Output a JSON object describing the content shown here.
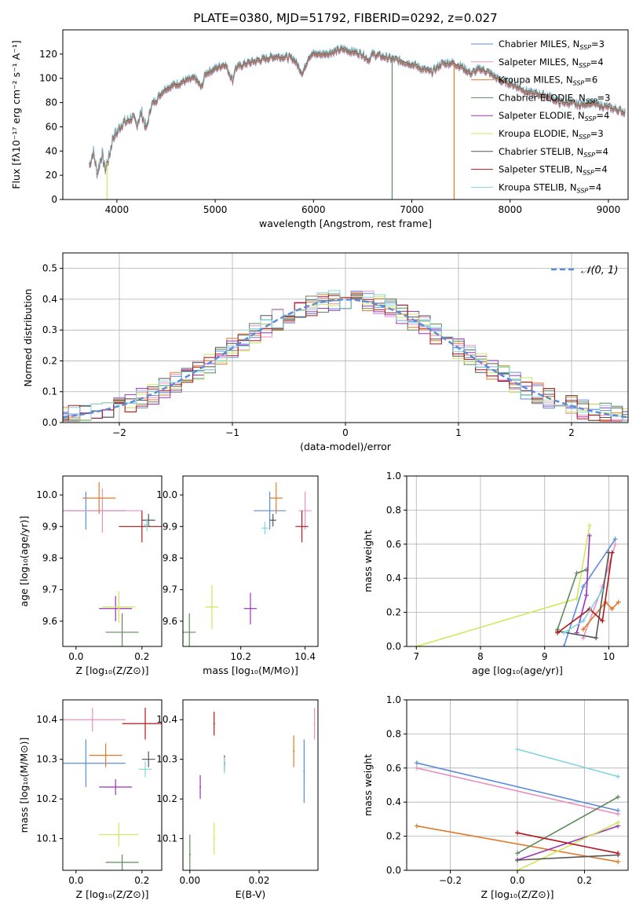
{
  "page": {
    "title": "PLATE=0380, MJD=51792, FIBERID=0292, z=0.027"
  },
  "chart_data": [
    {
      "id": "spectrum",
      "type": "line",
      "xlabel": "wavelength [Angstrom, rest frame]",
      "ylabel": "Flux [fλ10⁻¹⁷ erg cm⁻² s⁻¹ A⁻¹]",
      "xlim": [
        3450,
        9200
      ],
      "ylim": [
        0,
        140
      ],
      "xticks": [
        4000,
        5000,
        6000,
        7000,
        8000,
        9000
      ],
      "yticks": [
        0,
        20,
        40,
        60,
        80,
        100,
        120
      ],
      "grid": false,
      "legend_position": "right",
      "shape_points": [
        [
          3720,
          28
        ],
        [
          3760,
          40
        ],
        [
          3800,
          22
        ],
        [
          3850,
          38
        ],
        [
          3880,
          25
        ],
        [
          3920,
          35
        ],
        [
          3960,
          52
        ],
        [
          4000,
          55
        ],
        [
          4050,
          63
        ],
        [
          4100,
          64
        ],
        [
          4150,
          68
        ],
        [
          4200,
          62
        ],
        [
          4250,
          72
        ],
        [
          4300,
          58
        ],
        [
          4350,
          78
        ],
        [
          4400,
          82
        ],
        [
          4450,
          88
        ],
        [
          4500,
          92
        ],
        [
          4600,
          95
        ],
        [
          4700,
          98
        ],
        [
          4800,
          100
        ],
        [
          4860,
          92
        ],
        [
          4900,
          104
        ],
        [
          5000,
          108
        ],
        [
          5100,
          112
        ],
        [
          5180,
          98
        ],
        [
          5200,
          108
        ],
        [
          5300,
          112
        ],
        [
          5400,
          114
        ],
        [
          5500,
          116
        ],
        [
          5600,
          118
        ],
        [
          5700,
          118
        ],
        [
          5800,
          116
        ],
        [
          5890,
          104
        ],
        [
          5950,
          118
        ],
        [
          6000,
          120
        ],
        [
          6100,
          120
        ],
        [
          6200,
          122
        ],
        [
          6300,
          124
        ],
        [
          6400,
          122
        ],
        [
          6500,
          120
        ],
        [
          6560,
          115
        ],
        [
          6600,
          120
        ],
        [
          6700,
          118
        ],
        [
          6800,
          116
        ],
        [
          6900,
          114
        ],
        [
          7000,
          112
        ],
        [
          7100,
          108
        ],
        [
          7200,
          105
        ],
        [
          7300,
          112
        ],
        [
          7400,
          113
        ],
        [
          7500,
          110
        ],
        [
          7600,
          104
        ],
        [
          7700,
          108
        ],
        [
          7800,
          104
        ],
        [
          7900,
          98
        ],
        [
          8000,
          96
        ],
        [
          8100,
          92
        ],
        [
          8200,
          88
        ],
        [
          8300,
          87
        ],
        [
          8400,
          85
        ],
        [
          8500,
          80
        ],
        [
          8600,
          80
        ],
        [
          8700,
          78
        ],
        [
          8800,
          80
        ],
        [
          8900,
          78
        ],
        [
          9000,
          76
        ],
        [
          9100,
          74
        ],
        [
          9170,
          72
        ]
      ],
      "drops": [
        {
          "series": "Kroupa ELODIE, N_SSP=3",
          "x": 3900
        },
        {
          "series": "Chabrier ELODIE, N_SSP=3",
          "x": 6800
        },
        {
          "series": "Kroupa MILES, N_SSP=6",
          "x": 7430
        }
      ],
      "series": [
        {
          "name": "Chabrier MILES, N",
          "sub": "SSP",
          "tail": "=3",
          "color": "#5b8bdb"
        },
        {
          "name": "Salpeter MILES, N",
          "sub": "SSP",
          "tail": "=4",
          "color": "#e890c0"
        },
        {
          "name": "Kroupa MILES, N",
          "sub": "SSP",
          "tail": "=6",
          "color": "#e07a28"
        },
        {
          "name": "Chabrier ELODIE, N",
          "sub": "SSP",
          "tail": "=3",
          "color": "#5e8a5e"
        },
        {
          "name": "Salpeter ELODIE, N",
          "sub": "SSP",
          "tail": "=4",
          "color": "#9b34b8"
        },
        {
          "name": "Kroupa ELODIE, N",
          "sub": "SSP",
          "tail": "=3",
          "color": "#cfe85a"
        },
        {
          "name": "Chabrier STELIB, N",
          "sub": "SSP",
          "tail": "=4",
          "color": "#555555"
        },
        {
          "name": "Salpeter STELIB, N",
          "sub": "SSP",
          "tail": "=4",
          "color": "#b5161c"
        },
        {
          "name": "Kroupa STELIB, N",
          "sub": "SSP",
          "tail": "=4",
          "color": "#7fd4de"
        }
      ]
    },
    {
      "id": "residuals",
      "type": "line",
      "xlabel": "(data-model)/error",
      "ylabel": "Normed distribution",
      "xlim": [
        -2.5,
        2.5
      ],
      "ylim": [
        0,
        0.55
      ],
      "xticks": [
        -2,
        -1,
        0,
        1,
        2
      ],
      "yticks": [
        0.0,
        0.1,
        0.2,
        0.3,
        0.4,
        0.5
      ],
      "grid": true,
      "legend_position": "upper right",
      "legend": "𝒩(0, 1)",
      "reference_curve": {
        "mu": 0,
        "sigma": 1,
        "color": "#5b8bdb"
      }
    },
    {
      "id": "age-vs-Z",
      "type": "scatter",
      "xlabel": "Z [log₁₀(Z/Z⊙)]",
      "ylabel": "age  [log₁₀(age/yr)]",
      "xlim": [
        -0.04,
        0.26
      ],
      "ylim": [
        9.52,
        10.06
      ],
      "xticks": [
        0.0,
        0.2
      ],
      "yticks": [
        9.6,
        9.7,
        9.8,
        9.9,
        10.0
      ],
      "grid": false,
      "points": [
        {
          "color": "#5b8bdb",
          "x": 0.03,
          "y": 9.95,
          "xerr": 0.12,
          "yerr": 0.06
        },
        {
          "color": "#e890c0",
          "x": 0.08,
          "y": 9.95,
          "xerr": 0.12,
          "yerr": 0.07
        },
        {
          "color": "#e07a28",
          "x": 0.07,
          "y": 9.99,
          "xerr": 0.05,
          "yerr": 0.05
        },
        {
          "color": "#5e8a5e",
          "x": 0.14,
          "y": 9.565,
          "xerr": 0.05,
          "yerr": 0.06
        },
        {
          "color": "#9b34b8",
          "x": 0.12,
          "y": 9.64,
          "xerr": 0.05,
          "yerr": 0.04
        },
        {
          "color": "#cfe85a",
          "x": 0.13,
          "y": 9.645,
          "xerr": 0.05,
          "yerr": 0.05
        },
        {
          "color": "#555555",
          "x": 0.22,
          "y": 9.92,
          "xerr": 0.02,
          "yerr": 0.02
        },
        {
          "color": "#b5161c",
          "x": 0.2,
          "y": 9.9,
          "xerr": 0.07,
          "yerr": 0.05
        },
        {
          "color": "#7fd4de",
          "x": 0.215,
          "y": 9.905,
          "xerr": 0.01,
          "yerr": 0.02
        }
      ]
    },
    {
      "id": "age-vs-mass",
      "type": "scatter",
      "xlabel": "mass [log₁₀(M/M⊙)]",
      "ylabel": "",
      "xlim": [
        10.02,
        10.44
      ],
      "ylim": [
        9.52,
        10.06
      ],
      "xticks": [
        10.2,
        10.4
      ],
      "yticks": [
        9.6,
        9.7,
        9.8,
        9.9,
        10.0
      ],
      "grid": false,
      "points": [
        {
          "color": "#5b8bdb",
          "x": 10.29,
          "y": 9.95,
          "xerr": 0.05,
          "yerr": 0.06
        },
        {
          "color": "#e890c0",
          "x": 10.4,
          "y": 9.95,
          "xerr": 0.02,
          "yerr": 0.06
        },
        {
          "color": "#e07a28",
          "x": 10.31,
          "y": 9.99,
          "xerr": 0.02,
          "yerr": 0.05
        },
        {
          "color": "#5e8a5e",
          "x": 10.04,
          "y": 9.565,
          "xerr": 0.02,
          "yerr": 0.06
        },
        {
          "color": "#9b34b8",
          "x": 10.23,
          "y": 9.64,
          "xerr": 0.02,
          "yerr": 0.05
        },
        {
          "color": "#cfe85a",
          "x": 10.11,
          "y": 9.645,
          "xerr": 0.02,
          "yerr": 0.07
        },
        {
          "color": "#555555",
          "x": 10.3,
          "y": 9.92,
          "xerr": 0.01,
          "yerr": 0.02
        },
        {
          "color": "#b5161c",
          "x": 10.39,
          "y": 9.9,
          "xerr": 0.02,
          "yerr": 0.05
        },
        {
          "color": "#7fd4de",
          "x": 10.275,
          "y": 9.895,
          "xerr": 0.01,
          "yerr": 0.02
        }
      ]
    },
    {
      "id": "massweight-vs-age",
      "type": "line",
      "xlabel": "age  [log₁₀(age/yr)]",
      "ylabel": "mass weight",
      "xlim": [
        6.85,
        10.3
      ],
      "ylim": [
        0,
        1
      ],
      "xticks": [
        7,
        8,
        9,
        10
      ],
      "yticks": [
        0.0,
        0.2,
        0.4,
        0.6,
        0.8,
        1.0
      ],
      "grid": true,
      "series": [
        {
          "color": "#cfe85a",
          "x": [
            7.0,
            9.5,
            9.7
          ],
          "y": [
            0.0,
            0.28,
            0.71
          ]
        },
        {
          "color": "#5b8bdb",
          "x": [
            9.3,
            9.6,
            10.1
          ],
          "y": [
            0.0,
            0.35,
            0.63
          ]
        },
        {
          "color": "#e890c0",
          "x": [
            9.6,
            9.9,
            10.1
          ],
          "y": [
            0.05,
            0.35,
            0.6
          ]
        },
        {
          "color": "#e07a28",
          "x": [
            9.6,
            9.95,
            10.05,
            10.15
          ],
          "y": [
            0.1,
            0.26,
            0.22,
            0.26
          ]
        },
        {
          "color": "#5e8a5e",
          "x": [
            9.2,
            9.5,
            9.65
          ],
          "y": [
            0.1,
            0.43,
            0.45
          ]
        },
        {
          "color": "#9b34b8",
          "x": [
            9.5,
            9.65,
            9.7
          ],
          "y": [
            0.08,
            0.3,
            0.65
          ]
        },
        {
          "color": "#555555",
          "x": [
            9.2,
            9.8,
            10.0
          ],
          "y": [
            0.09,
            0.05,
            0.55
          ]
        },
        {
          "color": "#b5161c",
          "x": [
            9.2,
            9.7,
            9.9,
            10.05
          ],
          "y": [
            0.08,
            0.22,
            0.15,
            0.55
          ]
        },
        {
          "color": "#7fd4de",
          "x": [
            9.3,
            9.6,
            9.9
          ],
          "y": [
            0.08,
            0.15,
            0.33
          ]
        }
      ]
    },
    {
      "id": "mass-vs-Z",
      "type": "scatter",
      "xlabel": "Z [log₁₀(Z/Z⊙)]",
      "ylabel": "mass [log₁₀(M/M⊙)]",
      "xlim": [
        -0.04,
        0.26
      ],
      "ylim": [
        10.02,
        10.45
      ],
      "xticks": [
        0.0,
        0.2
      ],
      "yticks": [
        10.1,
        10.2,
        10.3,
        10.4
      ],
      "grid": false,
      "points": [
        {
          "color": "#5b8bdb",
          "x": 0.03,
          "y": 10.29,
          "xerr": 0.12,
          "yerr": 0.06
        },
        {
          "color": "#e890c0",
          "x": 0.05,
          "y": 10.4,
          "xerr": 0.1,
          "yerr": 0.03
        },
        {
          "color": "#e07a28",
          "x": 0.09,
          "y": 10.31,
          "xerr": 0.05,
          "yerr": 0.03
        },
        {
          "color": "#5e8a5e",
          "x": 0.14,
          "y": 10.04,
          "xerr": 0.05,
          "yerr": 0.02
        },
        {
          "color": "#9b34b8",
          "x": 0.12,
          "y": 10.23,
          "xerr": 0.05,
          "yerr": 0.02
        },
        {
          "color": "#cfe85a",
          "x": 0.13,
          "y": 10.11,
          "xerr": 0.06,
          "yerr": 0.03
        },
        {
          "color": "#555555",
          "x": 0.22,
          "y": 10.3,
          "xerr": 0.02,
          "yerr": 0.02
        },
        {
          "color": "#b5161c",
          "x": 0.21,
          "y": 10.39,
          "xerr": 0.07,
          "yerr": 0.04
        },
        {
          "color": "#7fd4de",
          "x": 0.21,
          "y": 10.275,
          "xerr": 0.02,
          "yerr": 0.02
        }
      ]
    },
    {
      "id": "mass-vs-EBV",
      "type": "scatter",
      "xlabel": "E(B-V)",
      "ylabel": "",
      "xlim": [
        -0.002,
        0.037
      ],
      "ylim": [
        10.02,
        10.45
      ],
      "xticks": [
        0.0,
        0.02
      ],
      "yticks": [
        10.1,
        10.2,
        10.3,
        10.4
      ],
      "grid": false,
      "points": [
        {
          "color": "#5b8bdb",
          "x": 0.033,
          "y": 10.27,
          "xerr": 0.0,
          "yerr": 0.08
        },
        {
          "color": "#e890c0",
          "x": 0.036,
          "y": 10.39,
          "xerr": 0.0,
          "yerr": 0.04
        },
        {
          "color": "#e07a28",
          "x": 0.03,
          "y": 10.32,
          "xerr": 0.0,
          "yerr": 0.04
        },
        {
          "color": "#5e8a5e",
          "x": 0.0,
          "y": 10.06,
          "xerr": 0.0,
          "yerr": 0.05
        },
        {
          "color": "#9b34b8",
          "x": 0.003,
          "y": 10.23,
          "xerr": 0.0,
          "yerr": 0.03
        },
        {
          "color": "#cfe85a",
          "x": 0.007,
          "y": 10.1,
          "xerr": 0.0,
          "yerr": 0.04
        },
        {
          "color": "#555555",
          "x": 0.01,
          "y": 10.29,
          "xerr": 0.0,
          "yerr": 0.02
        },
        {
          "color": "#b5161c",
          "x": 0.007,
          "y": 10.39,
          "xerr": 0.0,
          "yerr": 0.03
        },
        {
          "color": "#7fd4de",
          "x": 0.01,
          "y": 10.285,
          "xerr": 0.0,
          "yerr": 0.02
        }
      ]
    },
    {
      "id": "massweight-vs-Z",
      "type": "line",
      "xlabel": "Z [log₁₀(Z/Z⊙)]",
      "ylabel": "mass weight",
      "xlim": [
        -0.33,
        0.33
      ],
      "ylim": [
        0,
        1
      ],
      "xticks": [
        -0.2,
        0.0,
        0.2
      ],
      "yticks": [
        0.0,
        0.2,
        0.4,
        0.6,
        0.8,
        1.0
      ],
      "grid": true,
      "series": [
        {
          "color": "#5b8bdb",
          "x": [
            -0.3,
            0.3
          ],
          "y": [
            0.63,
            0.35
          ]
        },
        {
          "color": "#e890c0",
          "x": [
            -0.3,
            0.3
          ],
          "y": [
            0.6,
            0.33
          ]
        },
        {
          "color": "#e07a28",
          "x": [
            -0.3,
            0.3
          ],
          "y": [
            0.26,
            0.05
          ]
        },
        {
          "color": "#5e8a5e",
          "x": [
            0.0,
            0.3
          ],
          "y": [
            0.1,
            0.43
          ]
        },
        {
          "color": "#9b34b8",
          "x": [
            0.0,
            0.3
          ],
          "y": [
            0.06,
            0.26
          ]
        },
        {
          "color": "#cfe85a",
          "x": [
            0.0,
            0.3
          ],
          "y": [
            0.0,
            0.28
          ]
        },
        {
          "color": "#555555",
          "x": [
            0.0,
            0.3
          ],
          "y": [
            0.06,
            0.09
          ]
        },
        {
          "color": "#b5161c",
          "x": [
            0.0,
            0.3
          ],
          "y": [
            0.22,
            0.1
          ]
        },
        {
          "color": "#7fd4de",
          "x": [
            0.0,
            0.3
          ],
          "y": [
            0.71,
            0.55
          ]
        }
      ]
    }
  ]
}
